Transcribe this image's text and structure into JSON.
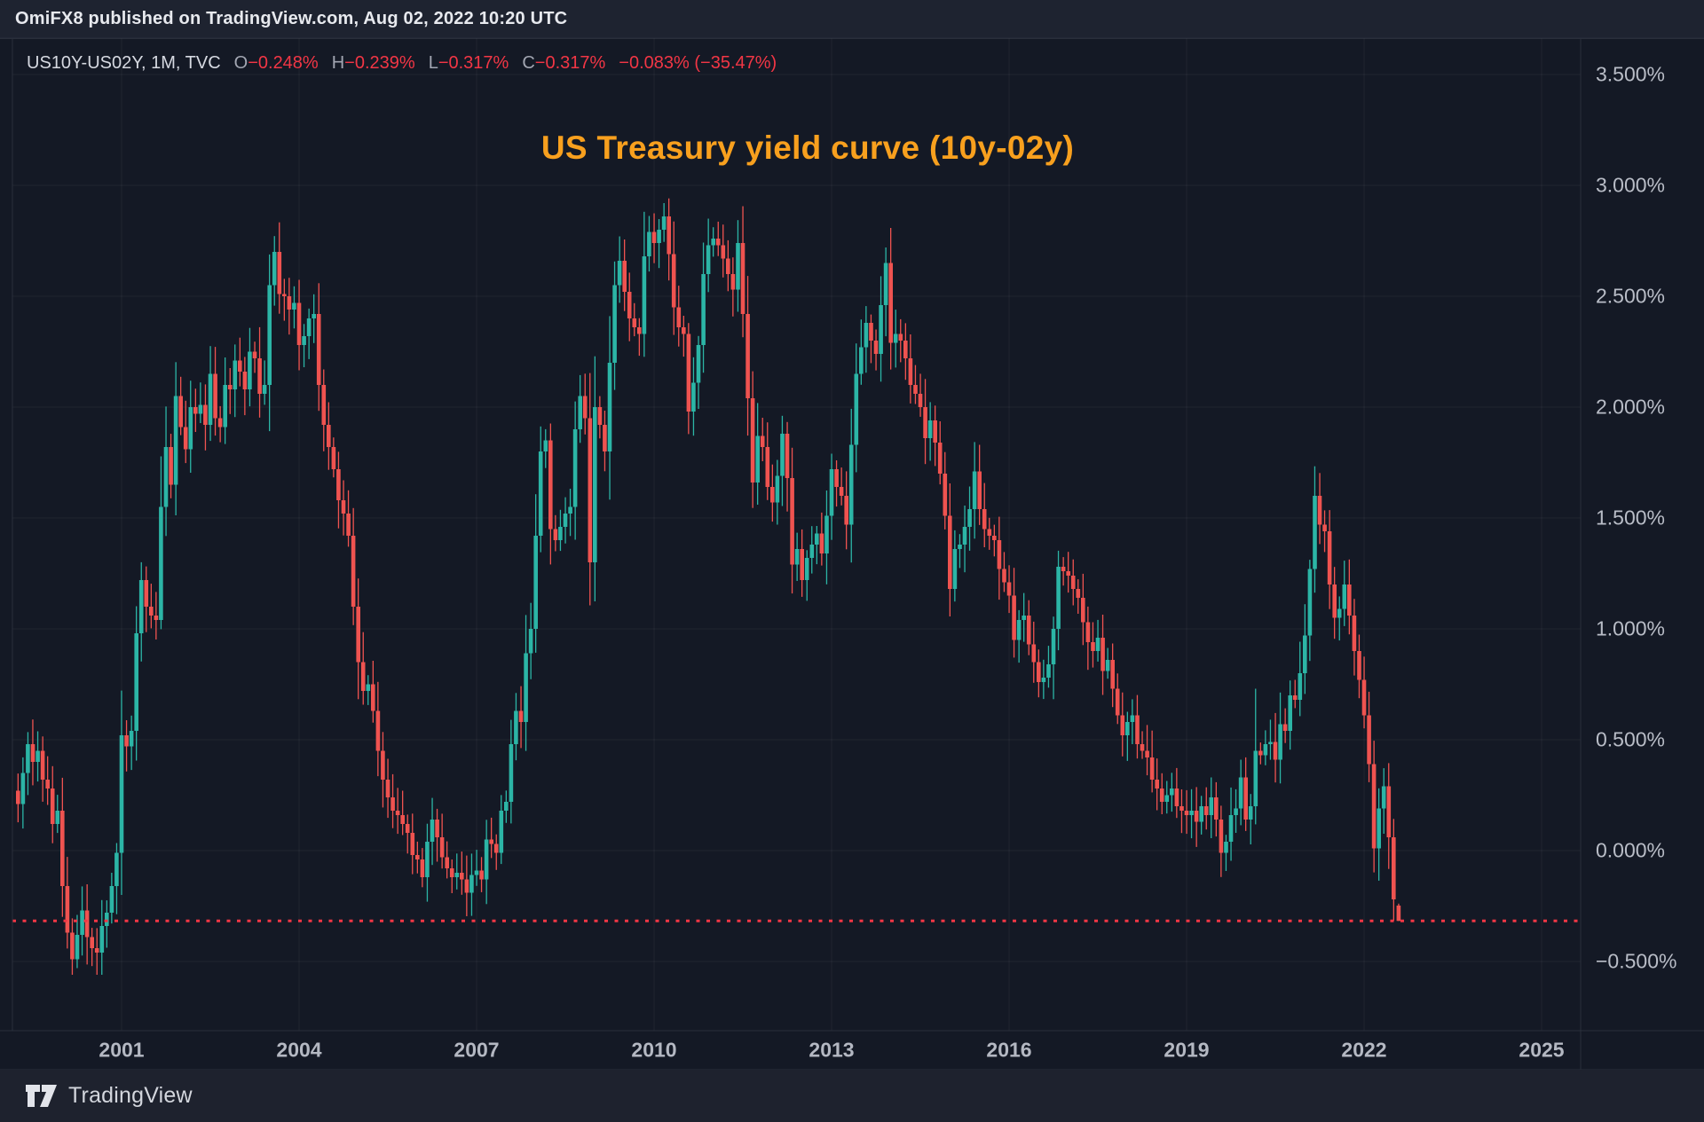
{
  "attribution": {
    "text": "OmiFX8 published on TradingView.com, Aug 02, 2022 10:20 UTC"
  },
  "legend": {
    "symbol_text": "US10Y-US02Y, 1M, TVC",
    "o": {
      "label": "O",
      "value": "−0.248%"
    },
    "h": {
      "label": "H",
      "value": "−0.239%"
    },
    "l": {
      "label": "L",
      "value": "−0.317%"
    },
    "c": {
      "label": "C",
      "value": "−0.317%"
    },
    "change": "−0.083% (−35.47%)"
  },
  "title": {
    "text": "US Treasury yield curve (10y-02y)",
    "color": "#f8a01e"
  },
  "y_axis": {
    "labels": [
      "3.500%",
      "3.000%",
      "2.500%",
      "2.000%",
      "1.500%",
      "1.000%",
      "0.500%",
      "0.000%",
      "−0.500%"
    ],
    "values": [
      3.5,
      3.0,
      2.5,
      2.0,
      1.5,
      1.0,
      0.5,
      0.0,
      -0.5
    ]
  },
  "x_axis": {
    "labels": [
      "2001",
      "2004",
      "2007",
      "2010",
      "2013",
      "2016",
      "2019",
      "2022",
      "2025"
    ],
    "years": [
      2001,
      2004,
      2007,
      2010,
      2013,
      2016,
      2019,
      2022,
      2025
    ]
  },
  "footer": {
    "brand": "TradingView"
  },
  "chart_data": {
    "type": "candlestick",
    "symbol": "US10Y-US02Y",
    "exchange": "TVC",
    "interval": "1M",
    "unit": "percent",
    "start": "1999-04",
    "title": "US Treasury yield curve (10y-02y)",
    "ylim_visible": [
      -0.81,
      3.67
    ],
    "grid": true,
    "price_line_value": -0.317,
    "last_bar": {
      "date": "2022-08",
      "open": -0.248,
      "high": -0.239,
      "low": -0.317,
      "close": -0.317
    },
    "wick_overrides": {
      "12": {
        "low": -0.53
      },
      "131": {
        "high": 2.92
      },
      "251": {
        "high": 0.73
      }
    },
    "colors": {
      "up": "#2cb5a6",
      "down": "#ef5350",
      "price_line": "#f23645",
      "grid": "rgba(255,255,255,0.055)",
      "border": "#2a2f3b"
    },
    "closes": [
      0.21,
      0.35,
      0.48,
      0.4,
      0.45,
      0.32,
      0.28,
      0.12,
      0.18,
      -0.16,
      -0.37,
      -0.49,
      -0.38,
      -0.27,
      -0.39,
      -0.44,
      -0.46,
      -0.34,
      -0.28,
      -0.16,
      -0.01,
      0.52,
      0.47,
      0.54,
      0.98,
      1.22,
      1.1,
      1.06,
      1.04,
      1.55,
      1.82,
      1.65,
      2.05,
      1.91,
      1.81,
      2.0,
      1.97,
      2.01,
      1.92,
      2.15,
      1.95,
      1.91,
      2.1,
      2.08,
      2.21,
      2.16,
      2.08,
      2.25,
      2.22,
      2.06,
      2.1,
      2.55,
      2.7,
      2.51,
      2.5,
      2.44,
      2.47,
      2.28,
      2.32,
      2.4,
      2.42,
      2.1,
      1.92,
      1.82,
      1.72,
      1.58,
      1.52,
      1.42,
      1.1,
      0.85,
      0.72,
      0.75,
      0.63,
      0.45,
      0.32,
      0.24,
      0.18,
      0.16,
      0.12,
      0.08,
      -0.02,
      -0.04,
      -0.12,
      0.04,
      0.14,
      0.06,
      -0.03,
      -0.08,
      -0.12,
      -0.1,
      -0.13,
      -0.19,
      -0.11,
      -0.09,
      -0.13,
      0.05,
      0.03,
      -0.01,
      0.18,
      0.22,
      0.48,
      0.63,
      0.58,
      0.89,
      1.0,
      1.42,
      1.8,
      1.85,
      1.45,
      1.4,
      1.46,
      1.52,
      1.55,
      1.9,
      2.05,
      1.95,
      1.3,
      2.0,
      1.92,
      1.8,
      2.2,
      2.55,
      2.66,
      2.52,
      2.4,
      2.36,
      2.33,
      2.68,
      2.79,
      2.74,
      2.8,
      2.86,
      2.69,
      2.45,
      2.36,
      2.33,
      1.98,
      2.11,
      2.28,
      2.6,
      2.73,
      2.76,
      2.73,
      2.67,
      2.6,
      2.53,
      2.74,
      2.42,
      2.04,
      1.66,
      1.87,
      1.82,
      1.64,
      1.57,
      1.69,
      1.88,
      1.68,
      1.29,
      1.36,
      1.22,
      1.32,
      1.38,
      1.43,
      1.34,
      1.51,
      1.72,
      1.64,
      1.6,
      1.47,
      1.83,
      2.15,
      2.27,
      2.38,
      2.3,
      2.24,
      2.46,
      2.65,
      2.29,
      2.33,
      2.3,
      2.22,
      2.1,
      2.06,
      2.0,
      1.86,
      1.94,
      1.84,
      1.7,
      1.51,
      1.18,
      1.36,
      1.38,
      1.46,
      1.54,
      1.71,
      1.54,
      1.45,
      1.42,
      1.4,
      1.27,
      1.21,
      1.15,
      0.95,
      1.04,
      1.06,
      0.93,
      0.85,
      0.76,
      0.78,
      0.84,
      1.0,
      1.28,
      1.26,
      1.24,
      1.18,
      1.14,
      1.03,
      0.94,
      0.9,
      0.96,
      0.81,
      0.86,
      0.73,
      0.61,
      0.52,
      0.58,
      0.61,
      0.48,
      0.45,
      0.42,
      0.32,
      0.28,
      0.22,
      0.25,
      0.28,
      0.2,
      0.18,
      0.16,
      0.18,
      0.13,
      0.2,
      0.16,
      0.24,
      0.14,
      -0.01,
      0.04,
      0.16,
      0.19,
      0.33,
      0.14,
      0.2,
      0.45,
      0.43,
      0.48,
      0.49,
      0.41,
      0.57,
      0.54,
      0.7,
      0.68,
      0.8,
      0.97,
      1.27,
      1.6,
      1.47,
      1.44,
      1.2,
      1.05,
      1.09,
      1.2,
      1.06,
      0.9,
      0.77,
      0.61,
      0.39,
      0.01,
      0.19,
      0.29,
      0.06,
      -0.22,
      -0.317
    ]
  }
}
